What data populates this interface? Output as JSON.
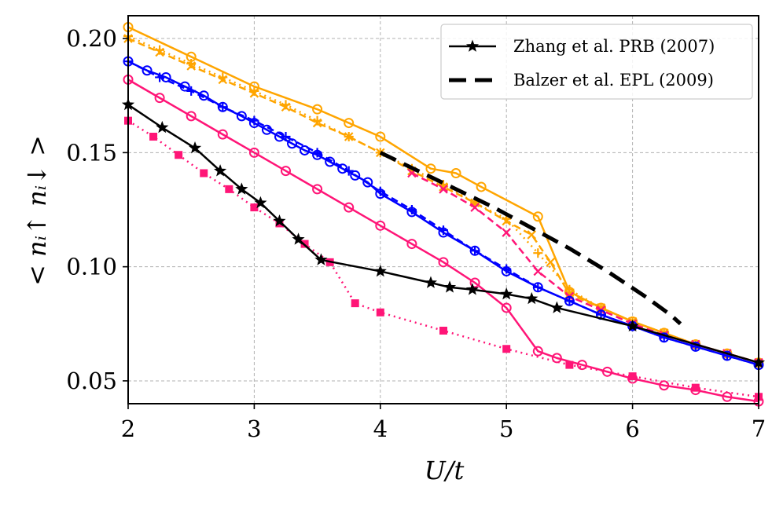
{
  "chart_data": {
    "type": "line",
    "xlabel": "U/t",
    "ylabel": "< nᵢ↑ nᵢ↓ >",
    "xlim": [
      2,
      7
    ],
    "ylim": [
      0.04,
      0.21
    ],
    "x_ticks": [
      2,
      3,
      4,
      5,
      6,
      7
    ],
    "x_tick_labels": [
      "2",
      "3",
      "4",
      "5",
      "6",
      "7"
    ],
    "y_ticks": [
      0.05,
      0.1,
      0.15,
      0.2
    ],
    "y_tick_labels": [
      "0.05",
      "0.10",
      "0.15",
      "0.20"
    ],
    "grid": true,
    "legend_position": "top-right",
    "colors": {
      "orange": "#FFA500",
      "blue": "#0000FF",
      "pink": "#FF1577",
      "black": "#000000"
    },
    "series": [
      {
        "name": "orange-circles",
        "color": "#FFA500",
        "dash": "solid",
        "marker": "circle-open",
        "x": [
          2.0,
          2.5,
          3.0,
          3.5,
          3.75,
          4.0,
          4.4,
          4.6,
          4.8,
          5.25,
          5.5,
          5.75,
          6.0,
          6.25,
          6.5,
          6.75,
          7.0
        ],
        "y": [
          0.205,
          0.192,
          0.179,
          0.169,
          0.163,
          0.157,
          0.143,
          0.141,
          0.135,
          0.122,
          0.089,
          0.082,
          0.076,
          0.071,
          0.066,
          0.062,
          0.058
        ]
      },
      {
        "name": "orange-crosses-dashed",
        "color": "#FFA500",
        "dash": "dashed",
        "marker": "x",
        "x": [
          2.0,
          2.25,
          2.5,
          2.75,
          3.0,
          3.25,
          3.5,
          3.75,
          4.0,
          4.25,
          4.5,
          4.75,
          5.0,
          5.2,
          5.35,
          5.5,
          5.75,
          6.0,
          6.25,
          6.5,
          6.75,
          7.0
        ],
        "y": [
          0.2,
          0.194,
          0.188,
          0.182,
          0.176,
          0.17,
          0.163,
          0.157,
          0.15,
          0.142,
          0.135,
          0.128,
          0.12,
          0.114,
          0.102,
          0.088,
          0.082,
          0.076,
          0.071,
          0.066,
          0.062,
          0.058
        ]
      },
      {
        "name": "orange-plus-dotted",
        "color": "#FFA500",
        "dash": "dotted",
        "marker": "plus",
        "x": [
          2.0,
          2.25,
          2.5,
          2.75,
          3.0,
          3.25,
          3.5,
          3.75,
          4.0,
          4.25,
          4.5,
          4.75,
          5.0,
          5.25,
          5.5,
          5.75,
          6.0,
          6.25,
          6.5,
          6.75,
          7.0
        ],
        "y": [
          0.201,
          0.195,
          0.189,
          0.183,
          0.177,
          0.171,
          0.164,
          0.157,
          0.15,
          0.143,
          0.136,
          0.128,
          0.121,
          0.106,
          0.09,
          0.082,
          0.076,
          0.071,
          0.066,
          0.062,
          0.058
        ]
      },
      {
        "name": "pink-crosses-dashed",
        "color": "#FF1577",
        "dash": "dashed",
        "marker": "x",
        "x": [
          4.25,
          4.5,
          4.75,
          5.0,
          5.25,
          5.5,
          5.75,
          6.0,
          6.25,
          6.5,
          6.75,
          7.0
        ],
        "y": [
          0.141,
          0.134,
          0.126,
          0.115,
          0.098,
          0.087,
          0.081,
          0.075,
          0.07,
          0.066,
          0.062,
          0.058
        ]
      },
      {
        "name": "blue-circles",
        "color": "#0000FF",
        "dash": "solid",
        "marker": "circle-open",
        "x": [
          2.0,
          2.15,
          2.3,
          2.45,
          2.6,
          2.75,
          2.9,
          3.0,
          3.1,
          3.2,
          3.3,
          3.4,
          3.5,
          3.6,
          3.7,
          3.8,
          3.9,
          4.0,
          4.25,
          4.5,
          4.75,
          5.0,
          5.25,
          5.5,
          5.75,
          6.0,
          6.25,
          6.5,
          6.75,
          7.0
        ],
        "y": [
          0.19,
          0.186,
          0.183,
          0.179,
          0.175,
          0.17,
          0.166,
          0.163,
          0.16,
          0.157,
          0.154,
          0.151,
          0.149,
          0.146,
          0.143,
          0.14,
          0.137,
          0.132,
          0.124,
          0.115,
          0.107,
          0.098,
          0.091,
          0.085,
          0.079,
          0.074,
          0.069,
          0.065,
          0.061,
          0.057
        ]
      },
      {
        "name": "blue-plus",
        "color": "#0000FF",
        "dash": "dashed",
        "marker": "plus",
        "x": [
          2.0,
          2.25,
          2.5,
          2.75,
          3.0,
          3.25,
          3.5,
          3.75,
          4.0,
          4.25,
          4.5,
          4.75,
          5.0,
          5.25,
          5.5,
          5.75,
          6.0,
          6.25,
          6.5,
          6.75,
          7.0
        ],
        "y": [
          0.19,
          0.183,
          0.177,
          0.17,
          0.164,
          0.157,
          0.15,
          0.142,
          0.133,
          0.125,
          0.116,
          0.107,
          0.099,
          0.091,
          0.085,
          0.079,
          0.074,
          0.069,
          0.065,
          0.061,
          0.057
        ]
      },
      {
        "name": "pink-circles",
        "color": "#FF1577",
        "dash": "solid",
        "marker": "circle-open",
        "x": [
          2.0,
          2.25,
          2.5,
          2.75,
          3.0,
          3.25,
          3.5,
          3.75,
          4.0,
          4.25,
          4.5,
          4.75,
          5.0,
          5.25,
          5.4,
          5.6,
          5.8,
          6.0,
          6.25,
          6.5,
          6.75,
          7.0
        ],
        "y": [
          0.182,
          0.174,
          0.166,
          0.158,
          0.15,
          0.142,
          0.134,
          0.126,
          0.118,
          0.11,
          0.102,
          0.093,
          0.082,
          0.063,
          0.06,
          0.057,
          0.054,
          0.051,
          0.048,
          0.046,
          0.043,
          0.041
        ]
      },
      {
        "name": "pink-squares-dotted",
        "color": "#FF1577",
        "dash": "dotted",
        "marker": "square",
        "x": [
          2.0,
          2.2,
          2.4,
          2.6,
          2.8,
          3.0,
          3.2,
          3.4,
          3.6,
          3.8,
          4.0,
          4.5,
          5.0,
          5.5,
          6.0,
          6.5,
          7.0
        ],
        "y": [
          0.164,
          0.157,
          0.149,
          0.141,
          0.134,
          0.126,
          0.119,
          0.11,
          0.102,
          0.084,
          0.08,
          0.072,
          0.064,
          0.057,
          0.052,
          0.047,
          0.043
        ]
      },
      {
        "name": "Zhang et al. PRB (2007)",
        "color": "#000000",
        "dash": "solid",
        "marker": "star",
        "x": [
          2.0,
          2.27,
          2.53,
          2.73,
          2.9,
          3.05,
          3.2,
          3.35,
          3.53,
          4.0,
          4.4,
          4.55,
          4.73,
          5.0,
          5.2,
          5.4,
          6.0,
          7.0
        ],
        "y": [
          0.171,
          0.161,
          0.152,
          0.142,
          0.134,
          0.128,
          0.12,
          0.112,
          0.103,
          0.098,
          0.093,
          0.091,
          0.09,
          0.088,
          0.086,
          0.082,
          0.074,
          0.058
        ]
      },
      {
        "name": "Balzer et al. EPL (2009)",
        "color": "#000000",
        "dash": "bold-dashed",
        "marker": "none",
        "x": [
          4.0,
          4.3,
          4.6,
          4.9,
          5.2,
          5.5,
          5.8,
          6.1,
          6.3,
          6.38
        ],
        "y": [
          0.15,
          0.142,
          0.134,
          0.126,
          0.117,
          0.108,
          0.098,
          0.087,
          0.079,
          0.075
        ]
      }
    ],
    "legend": [
      {
        "label": "Zhang et al. PRB (2007)",
        "series": "Zhang et al. PRB (2007)"
      },
      {
        "label": "Balzer et al. EPL (2009)",
        "series": "Balzer et al. EPL (2009)"
      }
    ]
  }
}
